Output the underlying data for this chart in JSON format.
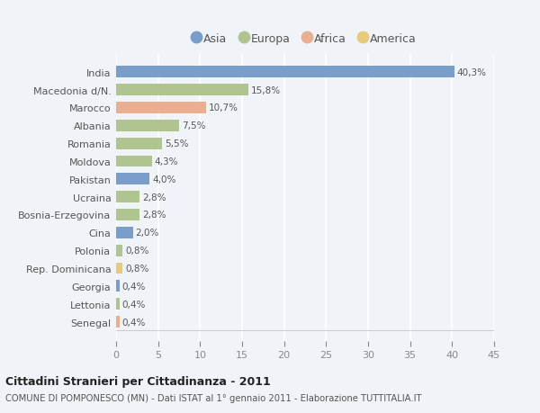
{
  "countries": [
    "India",
    "Macedonia d/N.",
    "Marocco",
    "Albania",
    "Romania",
    "Moldova",
    "Pakistan",
    "Ucraina",
    "Bosnia-Erzegovina",
    "Cina",
    "Polonia",
    "Rep. Dominicana",
    "Georgia",
    "Lettonia",
    "Senegal"
  ],
  "values": [
    40.3,
    15.8,
    10.7,
    7.5,
    5.5,
    4.3,
    4.0,
    2.8,
    2.8,
    2.0,
    0.8,
    0.8,
    0.4,
    0.4,
    0.4
  ],
  "labels": [
    "40,3%",
    "15,8%",
    "10,7%",
    "7,5%",
    "5,5%",
    "4,3%",
    "4,0%",
    "2,8%",
    "2,8%",
    "2,0%",
    "0,8%",
    "0,8%",
    "0,4%",
    "0,4%",
    "0,4%"
  ],
  "colors": [
    "#7b9dc9",
    "#b0c490",
    "#e8b090",
    "#b0c490",
    "#b0c490",
    "#b0c490",
    "#7b9dc9",
    "#b0c490",
    "#b0c490",
    "#7b9dc9",
    "#b0c490",
    "#e8cb7a",
    "#7b9dc9",
    "#b0c490",
    "#e8b090"
  ],
  "legend_labels": [
    "Asia",
    "Europa",
    "Africa",
    "America"
  ],
  "legend_colors": [
    "#7b9dc9",
    "#b0c490",
    "#e8b090",
    "#e8cb7a"
  ],
  "title": "Cittadini Stranieri per Cittadinanza - 2011",
  "subtitle": "COMUNE DI POMPONESCO (MN) - Dati ISTAT al 1° gennaio 2011 - Elaborazione TUTTITALIA.IT",
  "xlim": [
    0,
    45
  ],
  "xticks": [
    0,
    5,
    10,
    15,
    20,
    25,
    30,
    35,
    40,
    45
  ],
  "bg_color": "#f0f4f8",
  "plot_bg_color": "#f0f4f8",
  "grid_color": "#ffffff",
  "bar_height": 0.65,
  "label_color": "#555555",
  "tick_color": "#888888"
}
